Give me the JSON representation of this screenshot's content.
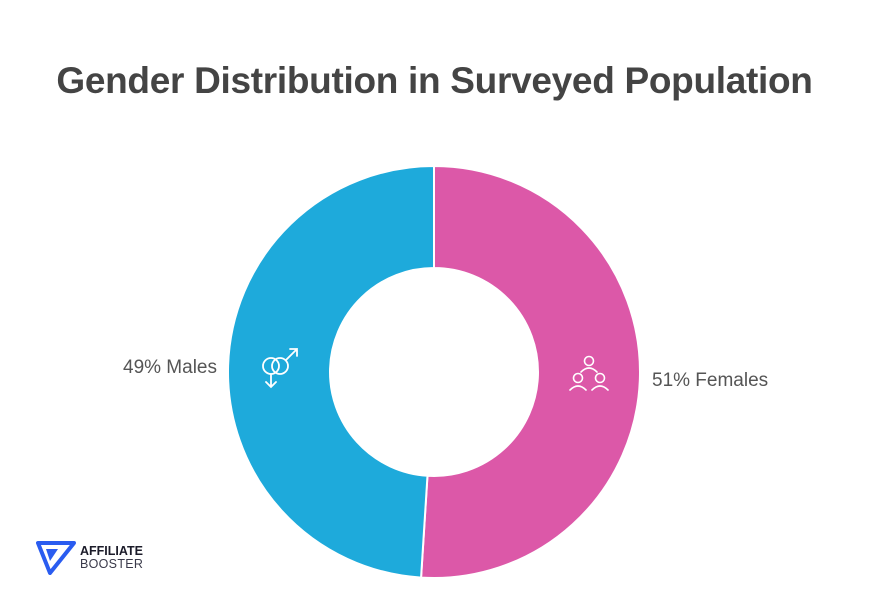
{
  "chart_data": {
    "type": "pie",
    "donut": true,
    "title": "Gender Distribution in Surveyed Population",
    "slices": [
      {
        "name": "Females",
        "value": 51,
        "label": "51% Females",
        "color": "#dc58a8",
        "icon": "women-group-icon"
      },
      {
        "name": "Males",
        "value": 49,
        "label": "49% Males",
        "color": "#1eaadb",
        "icon": "gender-symbols-icon"
      }
    ]
  },
  "logo": {
    "line1": "AFFILIATE",
    "line2": "BOOSTER",
    "color": "#2a5cf0"
  }
}
